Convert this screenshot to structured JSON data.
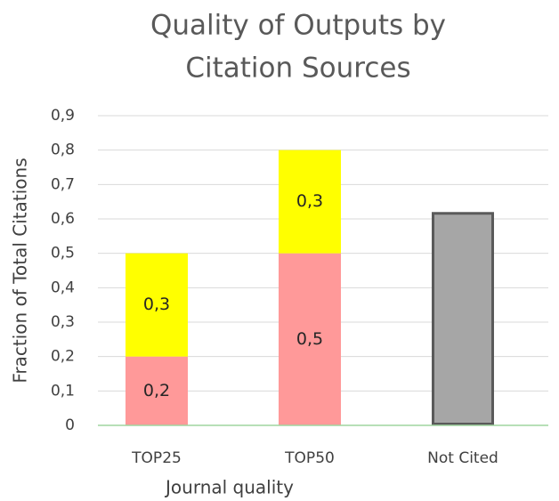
{
  "chart_data": {
    "type": "stacked_bar",
    "title": [
      "Quality of Outputs by",
      "Citation Sources"
    ],
    "y_label": "Fraction of Total Citations",
    "x_label": "Journal quality",
    "categories": [
      "TOP25",
      "TOP50",
      "Not Cited"
    ],
    "series": [
      {
        "color": "#ff9999",
        "values": [
          0.2,
          0.5,
          null
        ],
        "value_labels": [
          "0,2",
          "0,5",
          null
        ]
      },
      {
        "color": "#ffff00",
        "values": [
          0.3,
          0.3,
          null
        ],
        "value_labels": [
          "0,3",
          "0,3",
          null
        ]
      },
      {
        "color": "#a6a6a6",
        "stroke": "#5a5a5a",
        "values": [
          null,
          null,
          0.62
        ]
      }
    ],
    "ylim": [
      0,
      0.9
    ],
    "yticks": [
      0,
      {
        "value": 0.1,
        "label": "0,1"
      },
      {
        "value": 0.2,
        "label": "0,2"
      },
      {
        "value": 0.3,
        "label": "0,3"
      },
      {
        "value": 0.4,
        "label": "0,4"
      },
      {
        "value": 0.5,
        "label": "0,5"
      },
      {
        "value": 0.6,
        "label": "0,6"
      },
      {
        "value": 0.7,
        "label": "0,7"
      },
      {
        "value": 0.8,
        "label": "0,8"
      },
      {
        "value": 0.9,
        "label": "0,9"
      }
    ],
    "grid": true
  }
}
